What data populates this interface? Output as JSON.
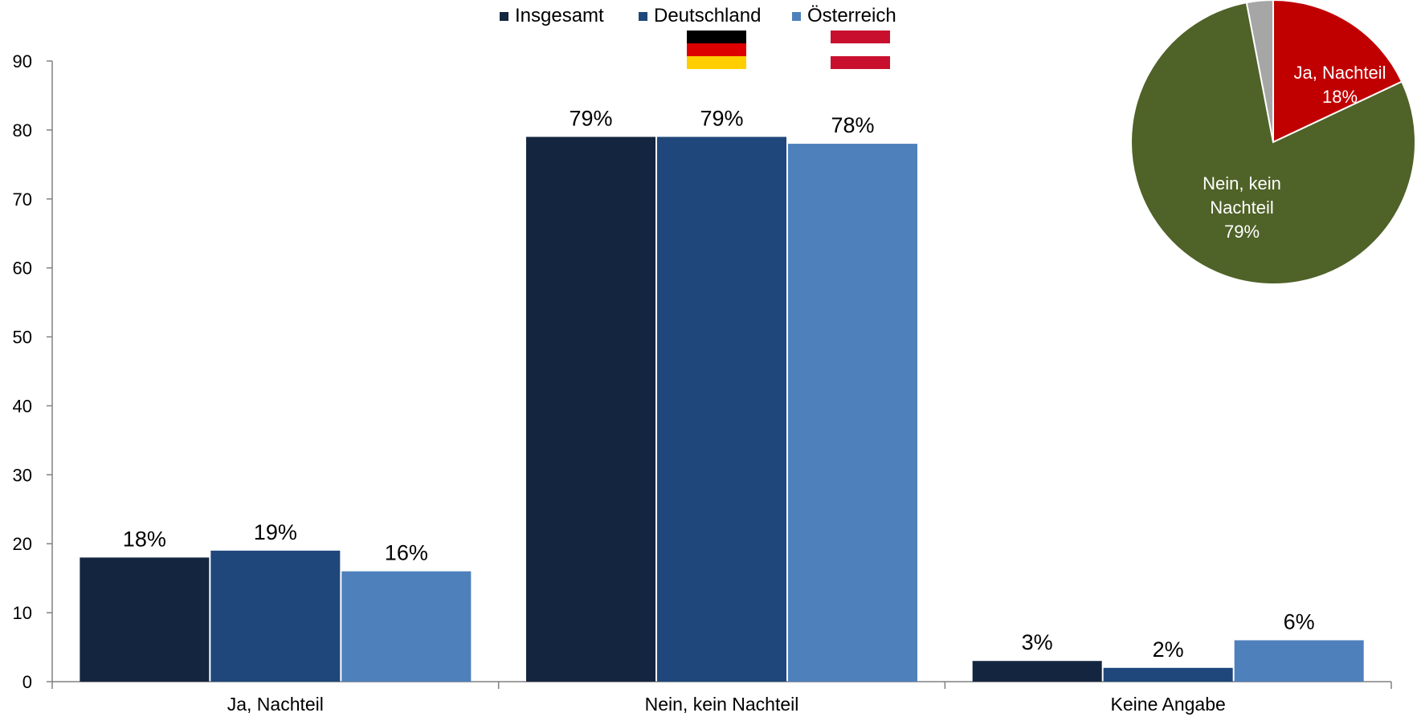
{
  "chart_data": [
    {
      "type": "bar",
      "categories": [
        "Ja, Nachteil",
        "Nein, kein Nachteil",
        "Keine Angabe"
      ],
      "series": [
        {
          "name": "Insgesamt",
          "values": [
            18,
            79,
            3
          ],
          "labels": [
            "18%",
            "79%",
            "3%"
          ],
          "color": "#14263f"
        },
        {
          "name": "Deutschland",
          "values": [
            19,
            79,
            2
          ],
          "labels": [
            "19%",
            "79%",
            "2%"
          ],
          "color": "#1f477b"
        },
        {
          "name": "Österreich",
          "values": [
            16,
            78,
            6
          ],
          "labels": [
            "16%",
            "78%",
            "6%"
          ],
          "color": "#4e80bc"
        }
      ],
      "yticks": [
        "0",
        "10",
        "20",
        "30",
        "40",
        "50",
        "60",
        "70",
        "80",
        "90"
      ],
      "ylim": [
        0,
        90
      ],
      "legend_position": "top-center",
      "legend_icons": {
        "Deutschland": "germany-flag-icon",
        "Österreich": "austria-flag-icon"
      },
      "grid": false
    },
    {
      "type": "pie",
      "slices": [
        {
          "label": "Ja, Nachteil",
          "value": 18,
          "text": "18%",
          "color": "#c00000"
        },
        {
          "label": "Nein, kein Nachteil",
          "value": 79,
          "text": "79%",
          "color": "#4f6228"
        },
        {
          "label": "Keine Angabe",
          "value": 3,
          "text": "",
          "color": "#a6a6a6"
        }
      ]
    }
  ]
}
